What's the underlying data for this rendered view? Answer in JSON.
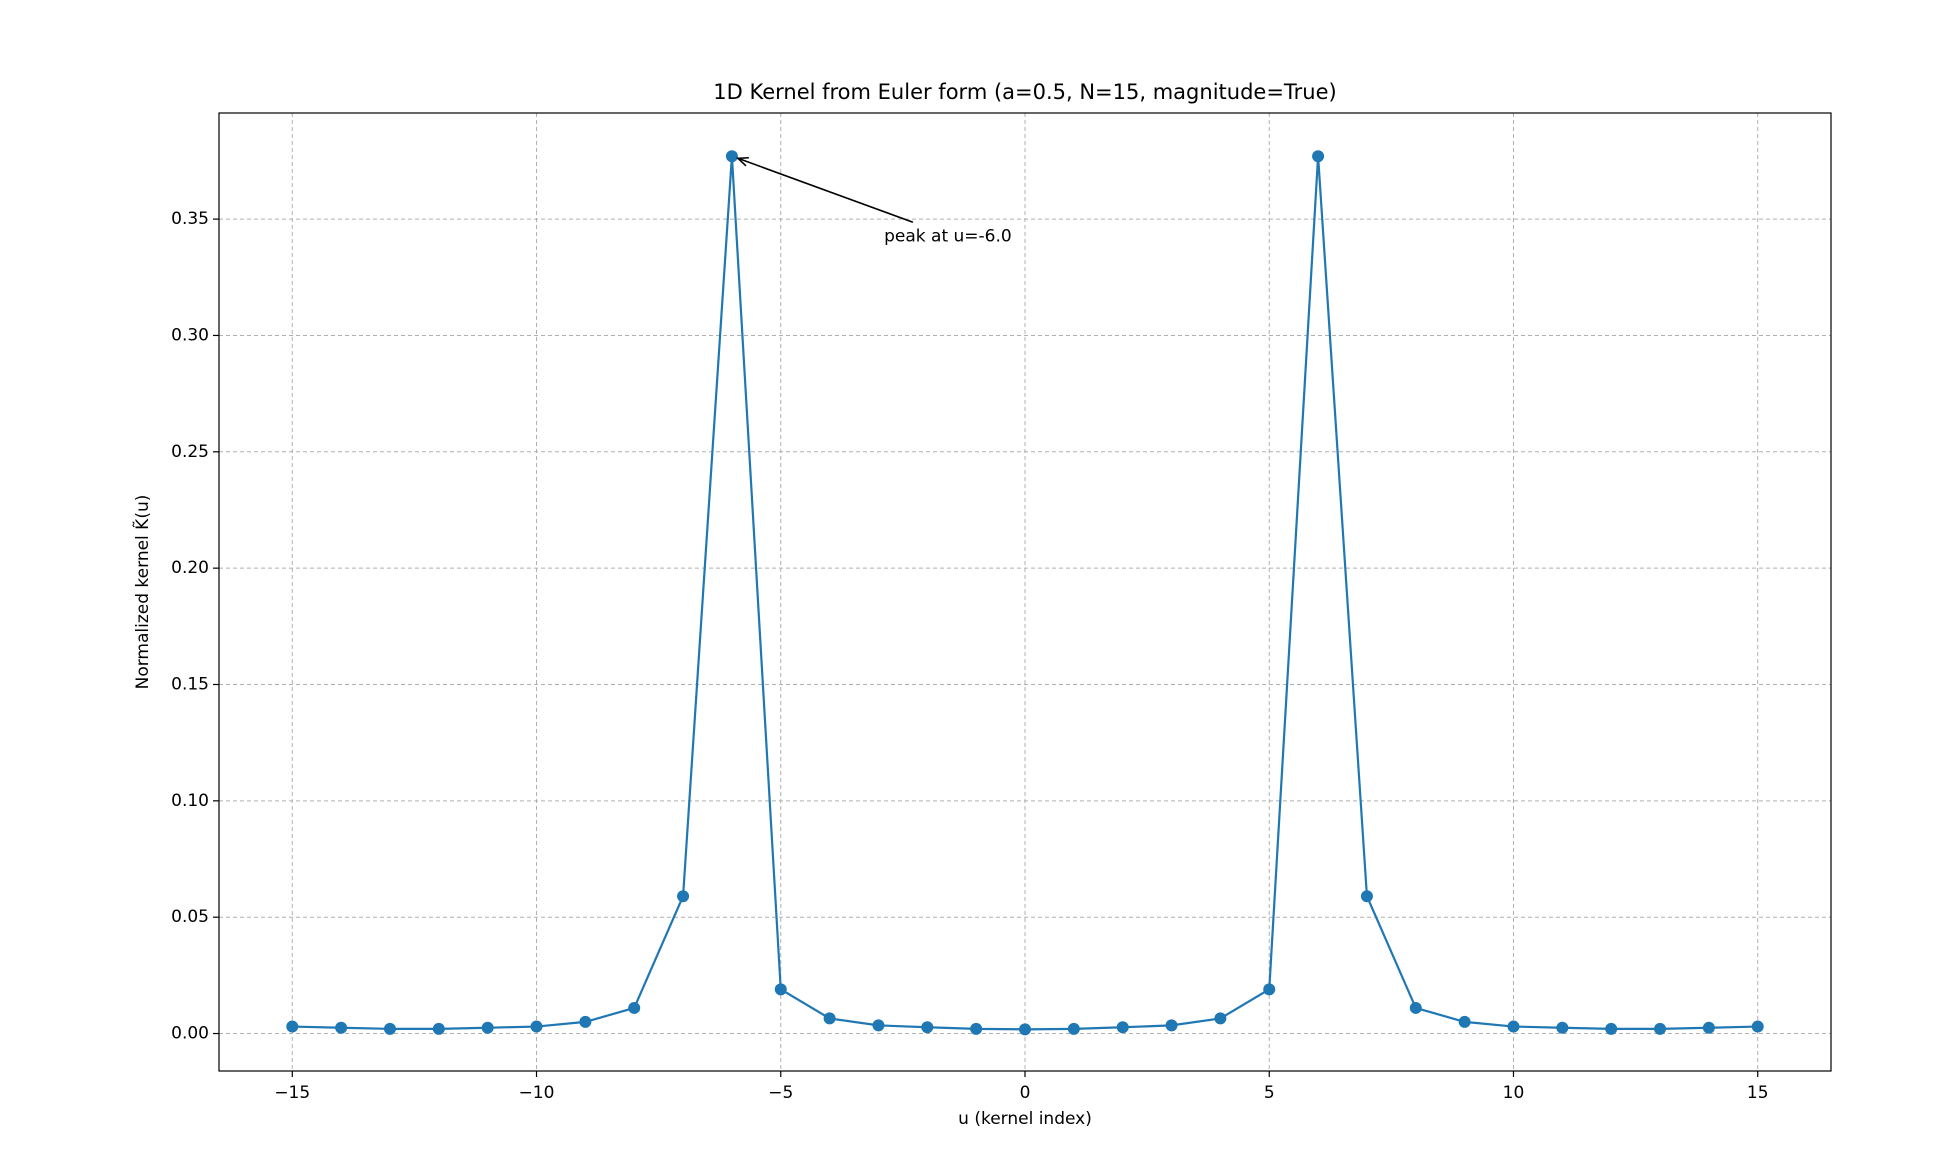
{
  "chart_data": {
    "type": "line",
    "title": "1D Kernel from Euler form (a=0.5, N=15, magnitude=True)",
    "x_label": "u (kernel index)",
    "y_label": "Normalized kernel K̃(u)",
    "x": [
      -15,
      -14,
      -13,
      -12,
      -11,
      -10,
      -9,
      -8,
      -7,
      -6,
      -5,
      -4,
      -3,
      -2,
      -1,
      0,
      1,
      2,
      3,
      4,
      5,
      6,
      7,
      8,
      9,
      10,
      11,
      12,
      13,
      14,
      15
    ],
    "values": [
      0.003,
      0.0025,
      0.002,
      0.002,
      0.0025,
      0.003,
      0.005,
      0.011,
      0.059,
      0.377,
      0.019,
      0.0065,
      0.0035,
      0.0027,
      0.002,
      0.0018,
      0.002,
      0.0027,
      0.0035,
      0.0065,
      0.019,
      0.377,
      0.059,
      0.011,
      0.005,
      0.003,
      0.0025,
      0.002,
      0.002,
      0.0025,
      0.003
    ],
    "color": "#1f77b4",
    "marker": "o",
    "xlim": [
      -16.5,
      16.5
    ],
    "ylim": [
      -0.0161,
      0.3956
    ],
    "xticks": [
      {
        "value": -15,
        "label": "−15"
      },
      {
        "value": -10,
        "label": "−10"
      },
      {
        "value": -5,
        "label": "−5"
      },
      0,
      5,
      10,
      15
    ],
    "yticks": [
      {
        "value": 0,
        "label": "0.00"
      },
      {
        "value": 0.05,
        "label": "0.05"
      },
      {
        "value": 0.1,
        "label": "0.10"
      },
      {
        "value": 0.15,
        "label": "0.15"
      },
      {
        "value": 0.2,
        "label": "0.20"
      },
      {
        "value": 0.25,
        "label": "0.25"
      },
      {
        "value": 0.3,
        "label": "0.30"
      },
      {
        "value": 0.35,
        "label": "0.35"
      }
    ],
    "grid": true,
    "annotation": {
      "text": "peak at u=-6.0",
      "x": -6,
      "y": 0.377
    }
  }
}
